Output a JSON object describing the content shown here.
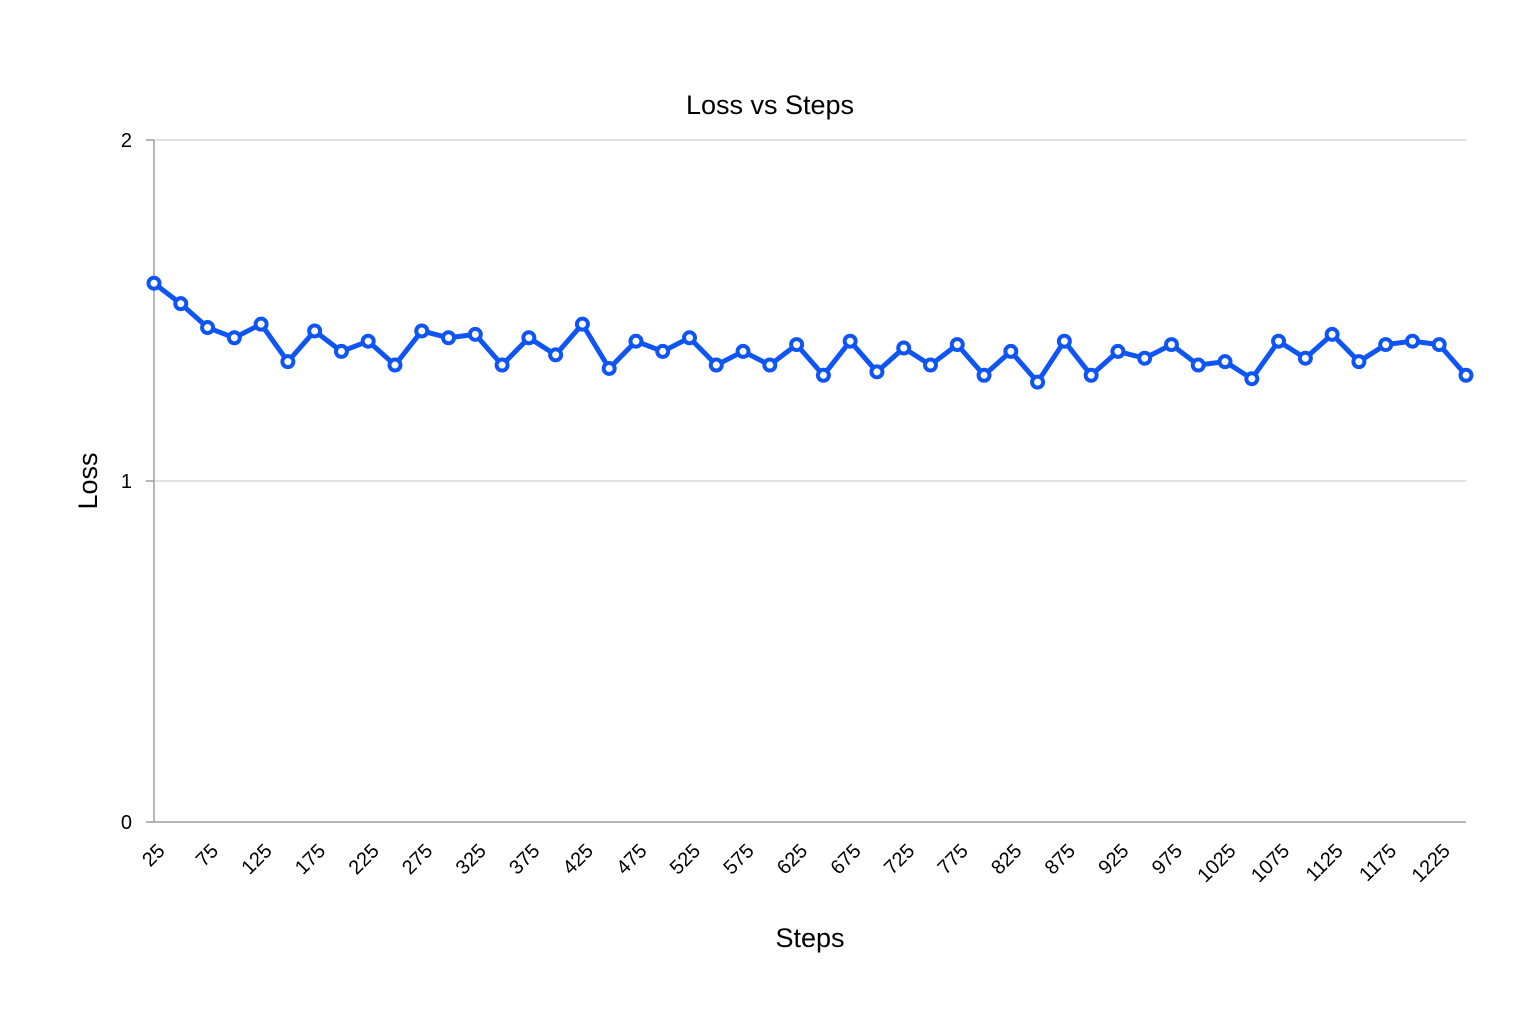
{
  "chart_data": {
    "type": "line",
    "title": "Loss vs Steps",
    "xlabel": "Steps",
    "ylabel": "Loss",
    "ylim": [
      0,
      2
    ],
    "yticks": [
      "0",
      "1",
      "2"
    ],
    "grid": true,
    "x": [
      25,
      50,
      75,
      100,
      125,
      150,
      175,
      200,
      225,
      250,
      275,
      300,
      325,
      350,
      375,
      400,
      425,
      450,
      475,
      500,
      525,
      550,
      575,
      600,
      625,
      650,
      675,
      700,
      725,
      750,
      775,
      800,
      825,
      850,
      875,
      900,
      925,
      950,
      975,
      1000,
      1025,
      1050,
      1075,
      1100,
      1125,
      1150,
      1175,
      1200,
      1225,
      1250
    ],
    "xtick_labels": [
      "25",
      "75",
      "125",
      "175",
      "225",
      "275",
      "325",
      "375",
      "425",
      "475",
      "525",
      "575",
      "625",
      "675",
      "725",
      "775",
      "825",
      "875",
      "925",
      "975",
      "1025",
      "1075",
      "1125",
      "1175",
      "1225"
    ],
    "series": [
      {
        "color": "#0f55f5",
        "values": [
          1.58,
          1.52,
          1.45,
          1.42,
          1.46,
          1.35,
          1.44,
          1.38,
          1.41,
          1.34,
          1.44,
          1.42,
          1.43,
          1.34,
          1.42,
          1.37,
          1.46,
          1.33,
          1.41,
          1.38,
          1.42,
          1.34,
          1.38,
          1.34,
          1.4,
          1.31,
          1.41,
          1.32,
          1.39,
          1.34,
          1.4,
          1.31,
          1.38,
          1.29,
          1.41,
          1.31,
          1.38,
          1.36,
          1.4,
          1.34,
          1.35,
          1.3,
          1.41,
          1.36,
          1.43,
          1.35,
          1.4,
          1.41,
          1.4,
          1.31
        ]
      }
    ]
  }
}
